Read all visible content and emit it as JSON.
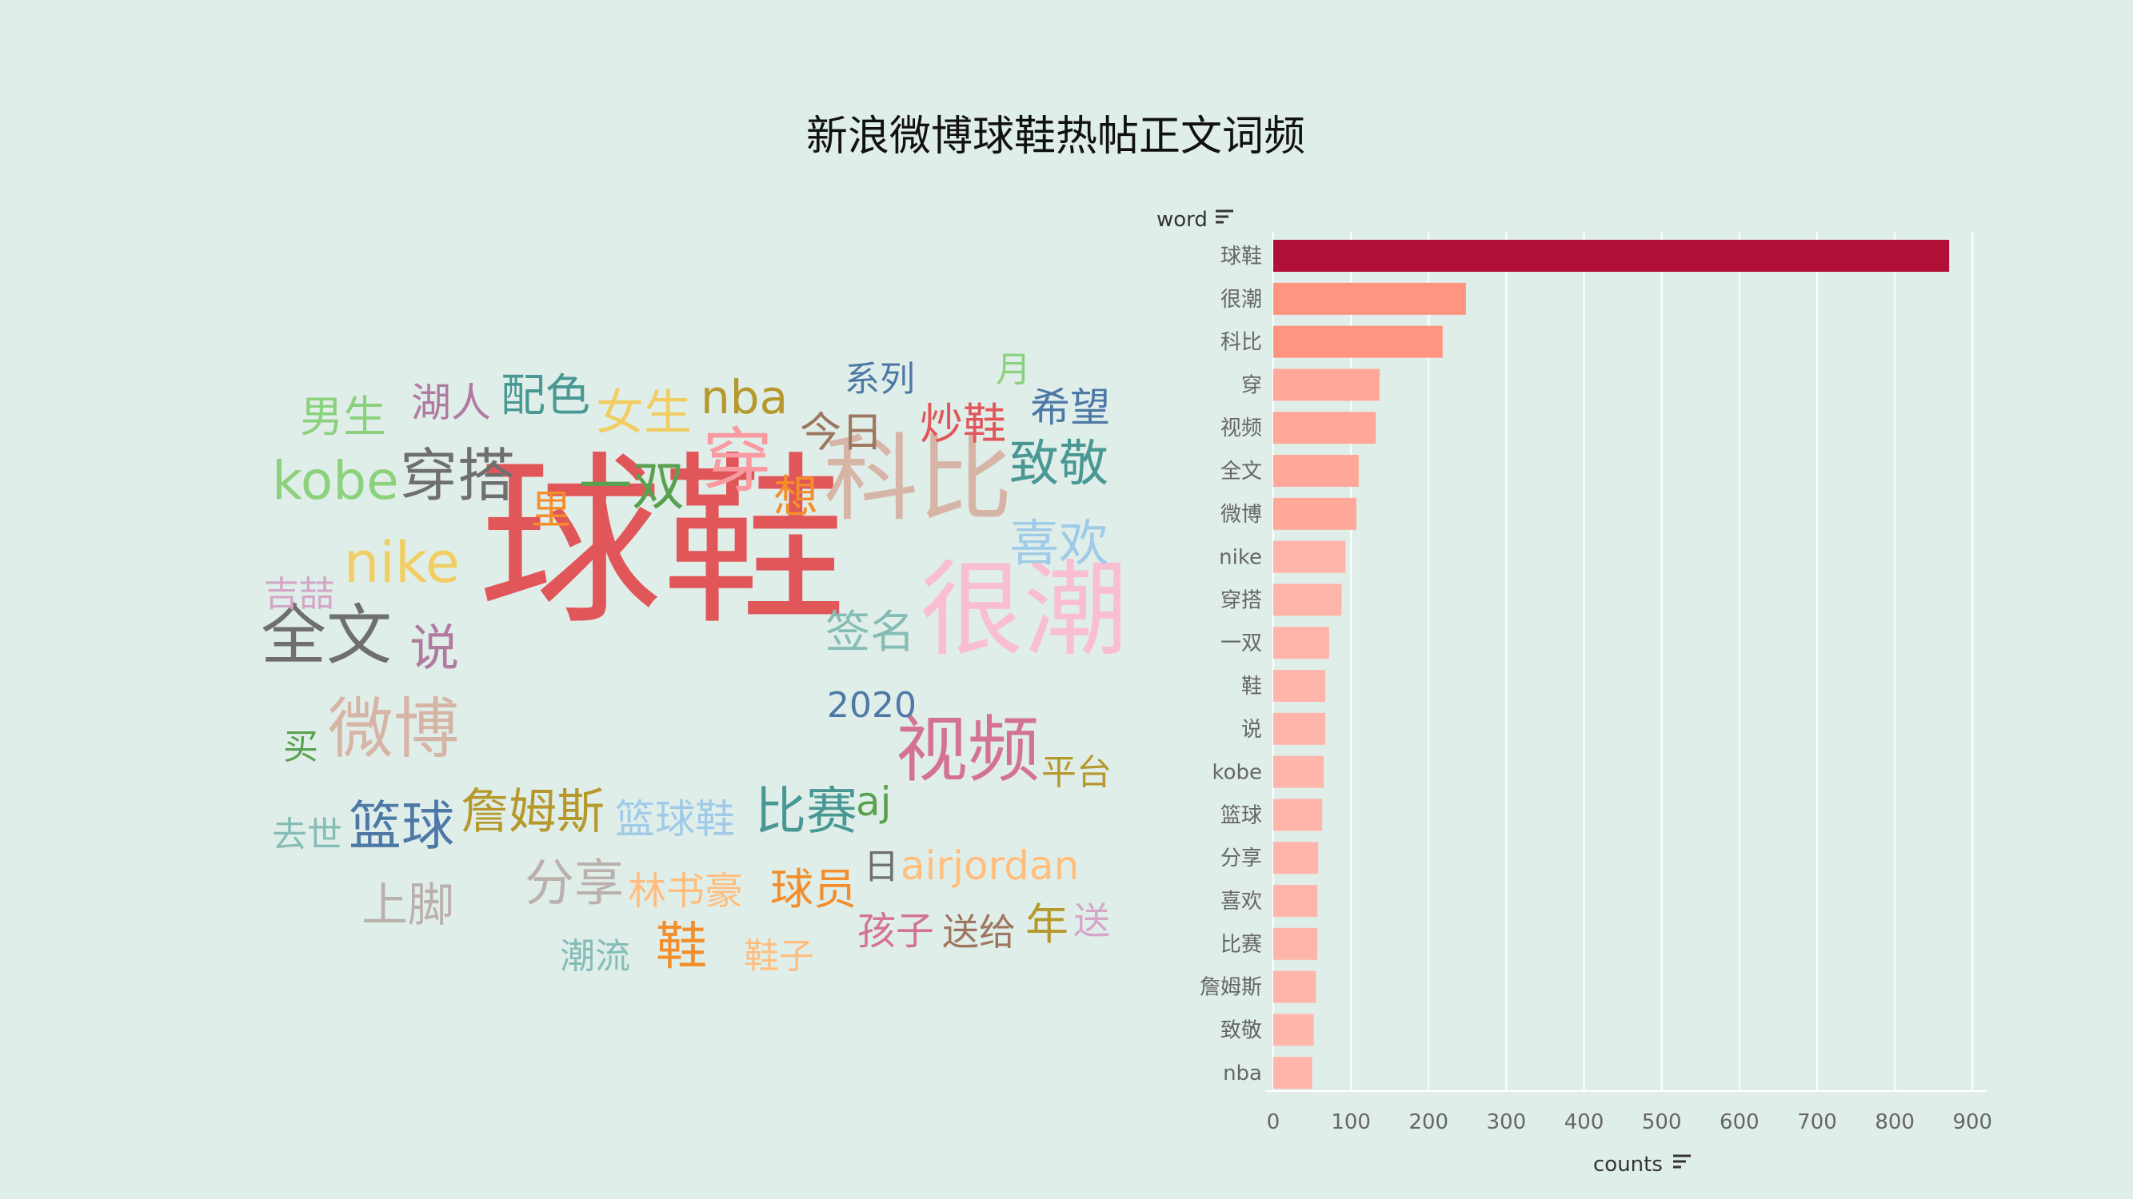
{
  "title": "新浪微博球鞋热帖正文词频",
  "colors": {
    "background": "#e0eeea",
    "bar_top": "#b01038",
    "bar_high": "#ff9580",
    "bar_mid": "#ffa89a",
    "bar_low": "#ffb5aa",
    "grid": "#ffffff",
    "text": "#666666"
  },
  "wordcloud": {
    "words": [
      {
        "text": "球鞋",
        "color": "#e15759"
      },
      {
        "text": "很潮",
        "color": "#f9bed2"
      },
      {
        "text": "科比",
        "color": "#d7b5a6"
      },
      {
        "text": "视频",
        "color": "#d37295"
      },
      {
        "text": "全文",
        "color": "#6f6f6f"
      },
      {
        "text": "nike",
        "color": "#f1ce63"
      },
      {
        "text": "穿",
        "color": "#f89aa0"
      },
      {
        "text": "微博",
        "color": "#d7b5a6"
      },
      {
        "text": "穿搭",
        "color": "#6f6f6f"
      },
      {
        "text": "kobe",
        "color": "#8cd17d"
      },
      {
        "text": "一双",
        "color": "#59a14f"
      },
      {
        "text": "致敬",
        "color": "#499894"
      },
      {
        "text": "喜欢",
        "color": "#a0cbe8"
      },
      {
        "text": "篮球",
        "color": "#4e79a7"
      },
      {
        "text": "比赛",
        "color": "#499894"
      },
      {
        "text": "詹姆斯",
        "color": "#b6992d"
      },
      {
        "text": "分享",
        "color": "#bab0ac"
      },
      {
        "text": "签名",
        "color": "#86bcb6"
      },
      {
        "text": "nba",
        "color": "#b6992d"
      },
      {
        "text": "鞋",
        "color": "#f28e2b"
      },
      {
        "text": "说",
        "color": "#b07aa1"
      },
      {
        "text": "上脚",
        "color": "#bab0ac"
      },
      {
        "text": "女生",
        "color": "#f1ce63"
      },
      {
        "text": "配色",
        "color": "#499894"
      },
      {
        "text": "炒鞋",
        "color": "#e15759"
      },
      {
        "text": "男生",
        "color": "#8cd17d"
      },
      {
        "text": "湖人",
        "color": "#b07aa1"
      },
      {
        "text": "希望",
        "color": "#4e79a7"
      },
      {
        "text": "今日",
        "color": "#9d7660"
      },
      {
        "text": "想",
        "color": "#f28e2b"
      },
      {
        "text": "里",
        "color": "#f28e2b"
      },
      {
        "text": "篮球鞋",
        "color": "#a0cbe8"
      },
      {
        "text": "airjordan",
        "color": "#ffbe7d"
      },
      {
        "text": "林书豪",
        "color": "#ffbe7d"
      },
      {
        "text": "球员",
        "color": "#f28e2b"
      },
      {
        "text": "2020",
        "color": "#4e79a7"
      },
      {
        "text": "aj",
        "color": "#59a14f"
      },
      {
        "text": "平台",
        "color": "#b6992d"
      },
      {
        "text": "系列",
        "color": "#4e79a7"
      },
      {
        "text": "吉喆",
        "color": "#d4a6c8"
      },
      {
        "text": "孩子",
        "color": "#d37295"
      },
      {
        "text": "送给",
        "color": "#9d7660"
      },
      {
        "text": "年",
        "color": "#b6992d"
      },
      {
        "text": "送",
        "color": "#d4a6c8"
      },
      {
        "text": "潮流",
        "color": "#86bcb6"
      },
      {
        "text": "鞋子",
        "color": "#ffbe7d"
      },
      {
        "text": "去世",
        "color": "#86bcb6"
      },
      {
        "text": "买",
        "color": "#59a14f"
      },
      {
        "text": "日",
        "color": "#6f6f6f"
      },
      {
        "text": "月",
        "color": "#8cd17d"
      }
    ]
  },
  "chart_data": {
    "type": "bar",
    "orientation": "horizontal",
    "categories": [
      "球鞋",
      "很潮",
      "科比",
      "穿",
      "视频",
      "全文",
      "微博",
      "nike",
      "穿搭",
      "一双",
      "鞋",
      "说",
      "kobe",
      "篮球",
      "分享",
      "喜欢",
      "比赛",
      "詹姆斯",
      "致敬",
      "nba"
    ],
    "values": [
      870,
      248,
      218,
      137,
      132,
      110,
      107,
      93,
      88,
      72,
      67,
      67,
      65,
      63,
      58,
      57,
      57,
      55,
      52,
      50
    ],
    "xlabel": "counts",
    "ylabel": "word",
    "xlim": [
      0,
      910
    ],
    "xticks": [
      0,
      100,
      200,
      300,
      400,
      500,
      600,
      700,
      800,
      900
    ],
    "grid": true
  }
}
